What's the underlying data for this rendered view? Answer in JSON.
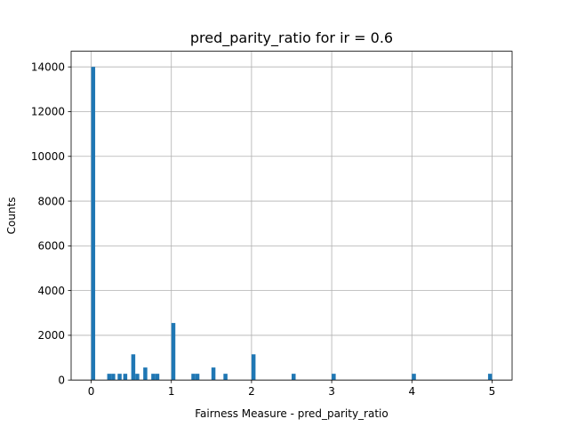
{
  "chart_data": {
    "type": "bar",
    "title": "pred_parity_ratio for ir = 0.6",
    "xlabel": "Fairness Measure - pred_parity_ratio",
    "ylabel": "Counts",
    "xlim": [
      -0.25,
      5.25
    ],
    "ylim": [
      0,
      14700
    ],
    "bin_width": 0.05,
    "grid": true,
    "xticks": [
      0,
      1,
      2,
      3,
      4,
      5
    ],
    "xtick_labels": [
      "0",
      "1",
      "2",
      "3",
      "4",
      "5"
    ],
    "yticks": [
      0,
      2000,
      4000,
      6000,
      8000,
      10000,
      12000,
      14000
    ],
    "ytick_labels": [
      "0",
      "2000",
      "4000",
      "6000",
      "8000",
      "10000",
      "12000",
      "14000"
    ],
    "bins": [
      {
        "x": 0.0,
        "count": 14000
      },
      {
        "x": 0.2,
        "count": 280
      },
      {
        "x": 0.25,
        "count": 280
      },
      {
        "x": 0.33,
        "count": 280
      },
      {
        "x": 0.4,
        "count": 280
      },
      {
        "x": 0.5,
        "count": 1150
      },
      {
        "x": 0.55,
        "count": 280
      },
      {
        "x": 0.65,
        "count": 560
      },
      {
        "x": 0.75,
        "count": 280
      },
      {
        "x": 0.8,
        "count": 280
      },
      {
        "x": 1.0,
        "count": 2550
      },
      {
        "x": 1.25,
        "count": 280
      },
      {
        "x": 1.3,
        "count": 280
      },
      {
        "x": 1.5,
        "count": 560
      },
      {
        "x": 1.65,
        "count": 280
      },
      {
        "x": 2.0,
        "count": 1150
      },
      {
        "x": 2.5,
        "count": 280
      },
      {
        "x": 3.0,
        "count": 280
      },
      {
        "x": 4.0,
        "count": 280
      },
      {
        "x": 4.95,
        "count": 280
      }
    ],
    "colors": {
      "bar": "#1f77b4"
    }
  }
}
